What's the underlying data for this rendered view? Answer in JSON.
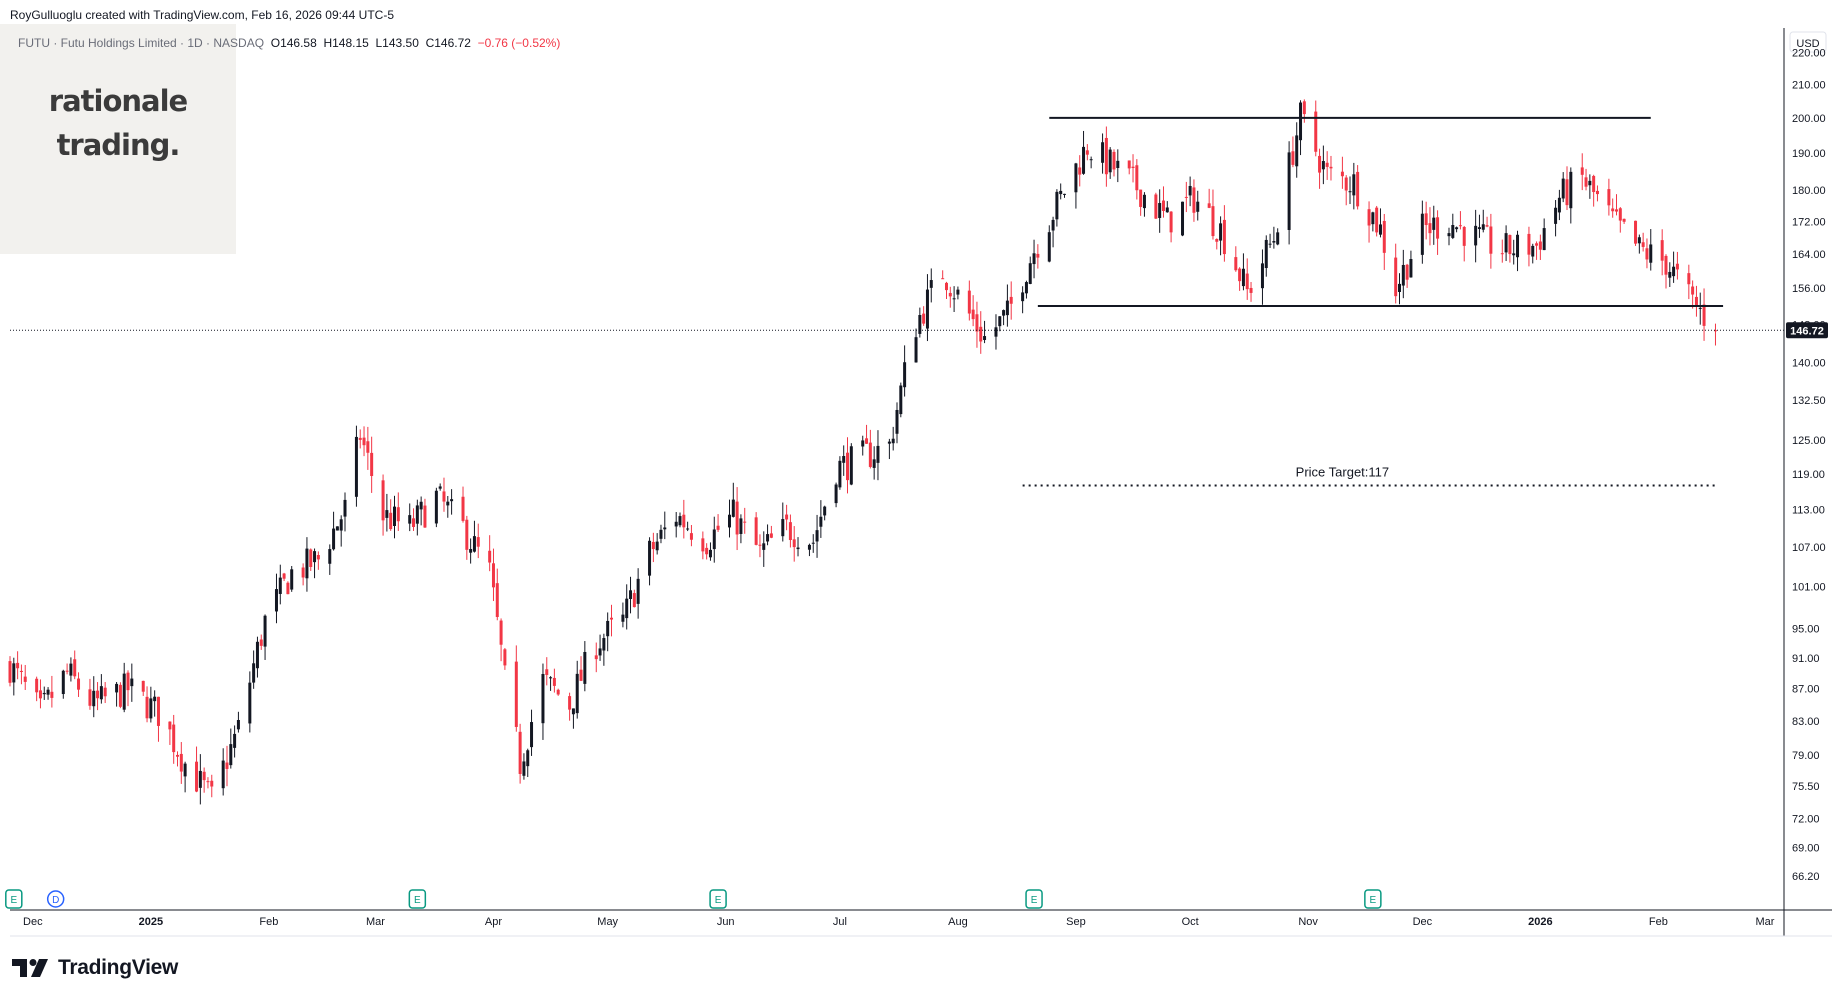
{
  "attribution": "RoyGulluoglu created with TradingView.com, Feb 16, 2026 09:44 UTC-5",
  "legend": {
    "symbol": "FUTU · Futu Holdings Limited · 1D · NASDAQ",
    "open": "O146.58",
    "high": "H148.15",
    "low": "L143.50",
    "close": "C146.72",
    "change": "−0.76 (−0.52%)"
  },
  "watermark": {
    "line1": "rationale",
    "line2": "trading."
  },
  "footer_brand": "TradingView",
  "currency": "USD",
  "colors": {
    "up": "#131722",
    "down": "#f23645",
    "accent": "#089981",
    "dividend": "#2962ff"
  },
  "chart_data": {
    "type": "candlestick",
    "title": "FUTU · Futu Holdings Limited · 1D · NASDAQ",
    "xlabel": "",
    "ylabel": "",
    "y_scale": "log",
    "ylim": [
      63,
      228
    ],
    "x_range": [
      "2024-11-25",
      "2026-03-06"
    ],
    "y_ticks": [
      "66.20",
      "69.00",
      "72.00",
      "75.50",
      "79.00",
      "83.00",
      "87.00",
      "91.00",
      "95.00",
      "101.00",
      "107.00",
      "113.00",
      "119.00",
      "125.00",
      "132.50",
      "140.00",
      "148.00",
      "156.00",
      "164.00",
      "172.00",
      "180.00",
      "190.00",
      "200.00",
      "210.00",
      "220.00"
    ],
    "x_ticks": [
      {
        "label": "Dec",
        "date": "2024-12-01"
      },
      {
        "label": "2025",
        "date": "2025-01-01"
      },
      {
        "label": "Feb",
        "date": "2025-02-01"
      },
      {
        "label": "Mar",
        "date": "2025-03-01"
      },
      {
        "label": "Apr",
        "date": "2025-04-01"
      },
      {
        "label": "May",
        "date": "2025-05-01"
      },
      {
        "label": "Jun",
        "date": "2025-06-01"
      },
      {
        "label": "Jul",
        "date": "2025-07-01"
      },
      {
        "label": "Aug",
        "date": "2025-08-01"
      },
      {
        "label": "Sep",
        "date": "2025-09-01"
      },
      {
        "label": "Oct",
        "date": "2025-10-01"
      },
      {
        "label": "Nov",
        "date": "2025-11-01"
      },
      {
        "label": "Dec",
        "date": "2025-12-01"
      },
      {
        "label": "2026",
        "date": "2026-01-01"
      },
      {
        "label": "Feb",
        "date": "2026-02-01"
      },
      {
        "label": "Mar",
        "date": "2026-03-01"
      }
    ],
    "last_price": "146.72",
    "path": [
      [
        "2024-11-25",
        90
      ],
      [
        "2024-12-03",
        84
      ],
      [
        "2024-12-10",
        89
      ],
      [
        "2024-12-17",
        85
      ],
      [
        "2024-12-26",
        87
      ],
      [
        "2025-01-03",
        84
      ],
      [
        "2025-01-10",
        78
      ],
      [
        "2025-01-17",
        74
      ],
      [
        "2025-01-24",
        82
      ],
      [
        "2025-01-31",
        96
      ],
      [
        "2025-02-07",
        103
      ],
      [
        "2025-02-14",
        105
      ],
      [
        "2025-02-21",
        113
      ],
      [
        "2025-02-25",
        126
      ],
      [
        "2025-03-03",
        112
      ],
      [
        "2025-03-10",
        110
      ],
      [
        "2025-03-17",
        115
      ],
      [
        "2025-03-24",
        110
      ],
      [
        "2025-03-31",
        103
      ],
      [
        "2025-04-04",
        88
      ],
      [
        "2025-04-08",
        78
      ],
      [
        "2025-04-14",
        88
      ],
      [
        "2025-04-21",
        85
      ],
      [
        "2025-04-28",
        93
      ],
      [
        "2025-05-05",
        96
      ],
      [
        "2025-05-12",
        106
      ],
      [
        "2025-05-19",
        112
      ],
      [
        "2025-05-27",
        108
      ],
      [
        "2025-06-03",
        112
      ],
      [
        "2025-06-10",
        106
      ],
      [
        "2025-06-17",
        110
      ],
      [
        "2025-06-24",
        108
      ],
      [
        "2025-06-30",
        120
      ],
      [
        "2025-07-07",
        122
      ],
      [
        "2025-07-14",
        124
      ],
      [
        "2025-07-21",
        148
      ],
      [
        "2025-07-28",
        160
      ],
      [
        "2025-08-04",
        150
      ],
      [
        "2025-08-08",
        145
      ],
      [
        "2025-08-14",
        150
      ],
      [
        "2025-08-21",
        165
      ],
      [
        "2025-08-28",
        178
      ],
      [
        "2025-09-04",
        192
      ],
      [
        "2025-09-11",
        186
      ],
      [
        "2025-09-18",
        180
      ],
      [
        "2025-09-25",
        172
      ],
      [
        "2025-10-02",
        178
      ],
      [
        "2025-10-09",
        170
      ],
      [
        "2025-10-16",
        155
      ],
      [
        "2025-10-23",
        168
      ],
      [
        "2025-10-30",
        200
      ],
      [
        "2025-11-06",
        184
      ],
      [
        "2025-11-13",
        182
      ],
      [
        "2025-11-20",
        170
      ],
      [
        "2025-11-24",
        156
      ],
      [
        "2025-12-01",
        170
      ],
      [
        "2025-12-08",
        172
      ],
      [
        "2025-12-15",
        168
      ],
      [
        "2025-12-22",
        165
      ],
      [
        "2025-12-31",
        166
      ],
      [
        "2026-01-06",
        178
      ],
      [
        "2026-01-12",
        183
      ],
      [
        "2026-01-20",
        172
      ],
      [
        "2026-01-27",
        165
      ],
      [
        "2026-02-03",
        162
      ],
      [
        "2026-02-09",
        154
      ],
      [
        "2026-02-16",
        146.72
      ]
    ],
    "series": [
      {
        "name": "",
        "type": "horizontal_segment",
        "value": 200,
        "from": "2025-08-25",
        "to": "2026-01-30"
      },
      {
        "name": "",
        "type": "horizontal_segment",
        "value": 152,
        "from": "2025-08-22",
        "to": "2026-02-18"
      },
      {
        "name": "",
        "type": "horizontal_dotted_segment",
        "value": 117,
        "from": "2025-08-18",
        "to": "2026-02-16"
      }
    ],
    "annotations": [
      {
        "text": "Price Target:117",
        "value": 117,
        "date": "2025-11-10"
      }
    ],
    "event_markers": [
      {
        "label": "E",
        "date": "2024-11-26"
      },
      {
        "label": "D",
        "date": "2024-12-07"
      },
      {
        "label": "E",
        "date": "2025-03-12"
      },
      {
        "label": "E",
        "date": "2025-05-30"
      },
      {
        "label": "E",
        "date": "2025-08-21"
      },
      {
        "label": "E",
        "date": "2025-11-18"
      }
    ],
    "grid": false,
    "legend": "top-left"
  }
}
